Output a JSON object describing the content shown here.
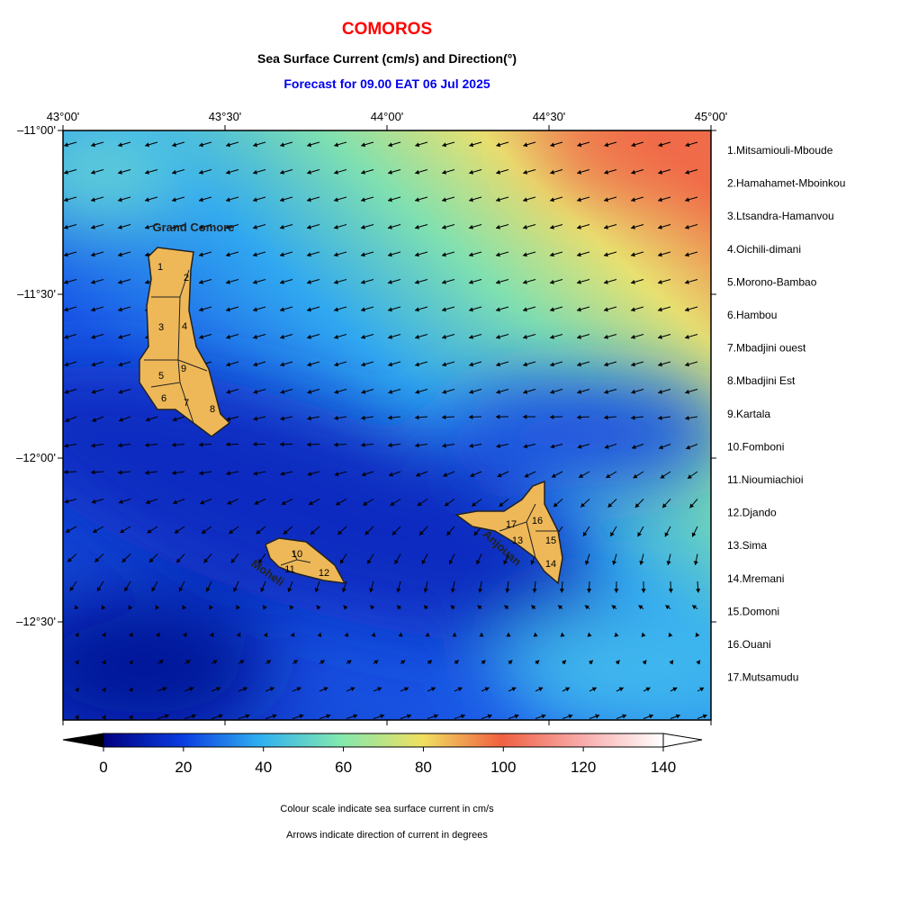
{
  "header": {
    "title": "COMOROS",
    "subtitle": "Sea Surface Current (cm/s) and Direction(°)",
    "forecast": "Forecast for  09.00 EAT 06 Jul 2025"
  },
  "map": {
    "lon_ticks": [
      "43°00'",
      "43°30'",
      "44°00'",
      "44°30'",
      "45°00'"
    ],
    "lat_ticks": [
      "–11°00'",
      "–11°30'",
      "–12°00'",
      "–12°30'"
    ],
    "islands": [
      "Grand Comore",
      "Moheli",
      "Anjouan"
    ],
    "regions": [
      "1",
      "2",
      "3",
      "4",
      "5",
      "6",
      "7",
      "8",
      "9",
      "10",
      "11",
      "12",
      "13",
      "14",
      "15",
      "16",
      "17"
    ]
  },
  "legend": [
    "1.Mitsamiouli-Mboude",
    "2.Hamahamet-Mboinkou",
    "3.Ltsandra-Hamanvou",
    "4.Oichili-dimani",
    "5.Morono-Bambao",
    "6.Hambou",
    "7.Mbadjini ouest",
    "8.Mbadjini Est",
    "9.Kartala",
    "10.Fomboni",
    "11.Nioumiachioi",
    "12.Djando",
    "13.Sima",
    "14.Mremani",
    "15.Domoni",
    "16.Ouani",
    "17.Mutsamudu"
  ],
  "colorbar": {
    "range": [
      0,
      140
    ],
    "ticks": [
      0,
      20,
      40,
      60,
      80,
      100,
      120,
      140
    ]
  },
  "notes": [
    "Colour scale indicate sea surface current in cm/s",
    "Arrows indicate direction of current in degrees"
  ]
}
